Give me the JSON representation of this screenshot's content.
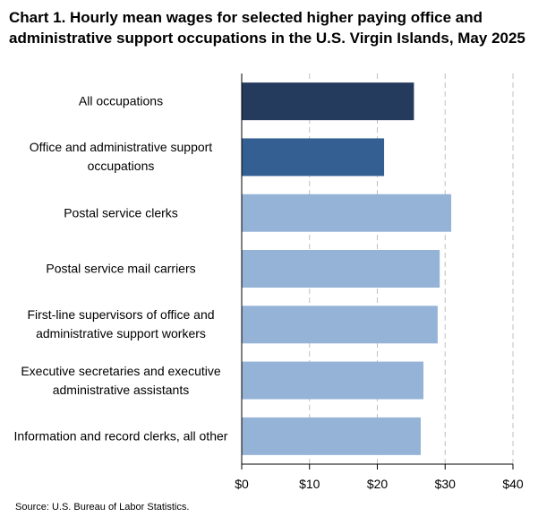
{
  "chart_data": {
    "type": "barh",
    "title": "Chart 1. Hourly mean wages for selected higher paying office and administrative support occupations in the U.S. Virgin Islands, May 2025",
    "categories": [
      "All occupations",
      "Office and administrative support occupations",
      "Postal service clerks",
      "Postal service mail carriers",
      "First-line supervisors of office and administrative support workers",
      "Executive secretaries and executive administrative assistants",
      "Information and record clerks, all other"
    ],
    "values": [
      25.4,
      21.0,
      30.9,
      29.2,
      28.9,
      26.8,
      26.4
    ],
    "colors": [
      "#243b5e",
      "#335f93",
      "#95b3d7",
      "#95b3d7",
      "#95b3d7",
      "#95b3d7",
      "#95b3d7"
    ],
    "xlim": [
      0,
      40
    ],
    "xticks": [
      {
        "value": 0,
        "label": "$0"
      },
      {
        "value": 10,
        "label": "$10"
      },
      {
        "value": 20,
        "label": "$20"
      },
      {
        "value": 30,
        "label": "$30"
      },
      {
        "value": 40,
        "label": "$40"
      }
    ],
    "grid": true,
    "source": "Source: U.S. Bureau of Labor Statistics."
  }
}
